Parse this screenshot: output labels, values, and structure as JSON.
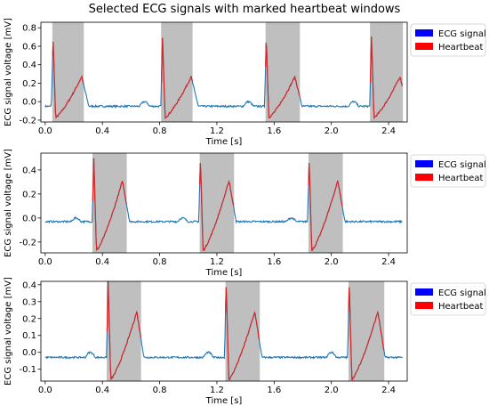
{
  "title": "Selected ECG signals with marked heartbeat windows",
  "colors": {
    "ecg": "#1f77b4",
    "heartbeat": "#d62728",
    "window": "#bfbfbf",
    "legend_ecg": "#0000ff",
    "legend_heartbeat": "#ff0000"
  },
  "chart_data": [
    {
      "type": "line",
      "xlabel": "Time [s]",
      "ylabel": "ECG signal voltage [mV]",
      "xlim": [
        -0.03,
        2.53
      ],
      "ylim": [
        -0.22,
        0.86
      ],
      "xticks": [
        "0.0",
        "0.4",
        "0.8",
        "1.2",
        "1.6",
        "2.0",
        "2.4"
      ],
      "yticks": [
        "-0.2",
        "0.0",
        "0.2",
        "0.4",
        "0.6",
        "0.8"
      ],
      "legend": [
        "ECG signal",
        "Heartbeat"
      ],
      "legend_position": "outside right",
      "windows": [
        [
          0.05,
          0.27
        ],
        [
          0.81,
          1.03
        ],
        [
          1.54,
          1.78
        ],
        [
          2.27,
          2.5
        ]
      ],
      "beats": [
        0.055,
        0.82,
        1.545,
        2.28
      ],
      "shape": {
        "peak": 0.7,
        "trough": -0.17,
        "twave": 0.27,
        "baseline": -0.05,
        "pwave": 0.0
      }
    },
    {
      "type": "line",
      "xlabel": "Time [s]",
      "ylabel": "ECG signal voltage [mV]",
      "xlim": [
        -0.03,
        2.53
      ],
      "ylim": [
        -0.29,
        0.54
      ],
      "xticks": [
        "0.0",
        "0.4",
        "0.8",
        "1.2",
        "1.6",
        "2.0",
        "2.4"
      ],
      "yticks": [
        "-0.2",
        "0.0",
        "0.2",
        "0.4"
      ],
      "legend": [
        "ECG signal",
        "Heartbeat"
      ],
      "legend_position": "outside right",
      "windows": [
        [
          0.33,
          0.57
        ],
        [
          1.08,
          1.32
        ],
        [
          1.84,
          2.08
        ]
      ],
      "beats": [
        0.34,
        1.085,
        1.845
      ],
      "shape": {
        "peak": 0.5,
        "trough": -0.27,
        "twave": 0.31,
        "baseline": -0.03,
        "pwave": 0.0
      }
    },
    {
      "type": "line",
      "xlabel": "Time [s]",
      "ylabel": "ECG signal voltage [mV]",
      "xlim": [
        -0.03,
        2.53
      ],
      "ylim": [
        -0.17,
        0.42
      ],
      "xticks": [
        "0.0",
        "0.4",
        "0.8",
        "1.2",
        "1.6",
        "2.0",
        "2.4"
      ],
      "yticks": [
        "-0.1",
        "0.0",
        "0.1",
        "0.2",
        "0.3",
        "0.4"
      ],
      "legend": [
        "ECG signal",
        "Heartbeat"
      ],
      "legend_position": "outside right",
      "windows": [
        [
          0.43,
          0.67
        ],
        [
          1.26,
          1.5
        ],
        [
          2.12,
          2.37
        ]
      ],
      "beats": [
        0.44,
        1.265,
        2.125
      ],
      "shape": {
        "peak": 0.42,
        "trough": -0.16,
        "twave": 0.24,
        "baseline": -0.03,
        "pwave": 0.0
      }
    }
  ]
}
